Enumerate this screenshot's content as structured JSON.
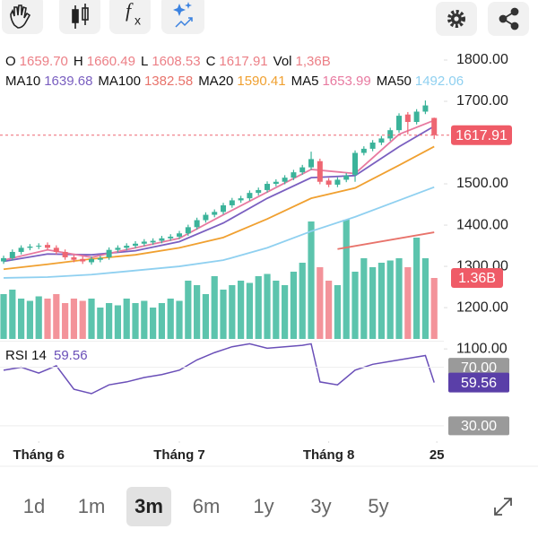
{
  "header": {
    "ohlc": [
      {
        "label": "O",
        "value": "1659.70"
      },
      {
        "label": "H",
        "value": "1660.49"
      },
      {
        "label": "L",
        "value": "1608.53"
      },
      {
        "label": "C",
        "value": "1617.91"
      },
      {
        "label": "Vol",
        "value": "1,36B"
      }
    ],
    "fx_icon": [
      "f",
      "x"
    ]
  },
  "chart_data": {
    "type": "candlestick",
    "up_color": "#3bb39a",
    "down_color": "#ee6672",
    "xlim": [
      -0.41,
      50.1
    ],
    "xticks": [
      {
        "value": 4,
        "label": "Tháng 6"
      },
      {
        "value": 20,
        "label": "Tháng 7"
      },
      {
        "value": 37,
        "label": "Tháng 8"
      },
      {
        "value": 49.3,
        "label": "25"
      }
    ],
    "ylim": [
      1072,
      1826
    ],
    "yticks": [
      {
        "value": 1100,
        "label": "1100.00"
      },
      {
        "value": 1200,
        "label": "1200.00"
      },
      {
        "value": 1300,
        "label": "1300.00"
      },
      {
        "value": 1400,
        "label": "1400.00"
      },
      {
        "value": 1500,
        "label": "1500.00"
      },
      {
        "value": 1700,
        "label": "1700.00"
      },
      {
        "value": 1800,
        "label": "1800.00"
      }
    ],
    "open": [
      1312,
      1320,
      1335,
      1345,
      1348,
      1352,
      1345,
      1335,
      1322,
      1318,
      1310,
      1316,
      1322,
      1340,
      1345,
      1350,
      1355,
      1358,
      1362,
      1368,
      1372,
      1380,
      1395,
      1412,
      1425,
      1432,
      1448,
      1460,
      1465,
      1478,
      1485,
      1500,
      1505,
      1515,
      1528,
      1540,
      1555,
      1508,
      1498,
      1510,
      1522,
      1575,
      1585,
      1600,
      1610,
      1630,
      1668,
      1650,
      1675,
      1659.7
    ],
    "high": [
      1326,
      1341,
      1351,
      1354,
      1356,
      1358,
      1351,
      1341,
      1328,
      1324,
      1324,
      1326,
      1346,
      1351,
      1356,
      1361,
      1366,
      1368,
      1374,
      1378,
      1386,
      1401,
      1418,
      1431,
      1438,
      1454,
      1466,
      1471,
      1484,
      1491,
      1506,
      1511,
      1521,
      1534,
      1546,
      1578,
      1561,
      1514,
      1516,
      1526,
      1581,
      1591,
      1606,
      1616,
      1636,
      1671,
      1674,
      1681,
      1702,
      1660.49
    ],
    "low": [
      1306,
      1314,
      1329,
      1339,
      1342,
      1339,
      1329,
      1316,
      1310,
      1306,
      1304,
      1310,
      1316,
      1334,
      1339,
      1344,
      1349,
      1352,
      1356,
      1362,
      1366,
      1374,
      1389,
      1406,
      1419,
      1426,
      1442,
      1454,
      1459,
      1472,
      1479,
      1494,
      1499,
      1509,
      1522,
      1534,
      1499,
      1492,
      1492,
      1504,
      1505,
      1569,
      1579,
      1594,
      1604,
      1624,
      1620,
      1644,
      1669,
      1608.53
    ],
    "close": [
      1320,
      1335,
      1345,
      1348,
      1350,
      1345,
      1335,
      1322,
      1316,
      1312,
      1318,
      1320,
      1340,
      1345,
      1350,
      1355,
      1360,
      1362,
      1368,
      1372,
      1380,
      1395,
      1412,
      1425,
      1432,
      1448,
      1460,
      1465,
      1478,
      1485,
      1500,
      1505,
      1515,
      1528,
      1540,
      1560,
      1505,
      1498,
      1510,
      1520,
      1575,
      1585,
      1600,
      1610,
      1630,
      1665,
      1650,
      1675,
      1690,
      1617.91
    ],
    "series": [
      {
        "name": "MA10",
        "color": "#7a5fc0",
        "x": [
          0,
          5,
          10,
          15,
          20,
          25,
          30,
          35,
          40,
          45,
          49
        ],
        "values": [
          1312,
          1330,
          1328,
          1338,
          1360,
          1405,
          1465,
          1515,
          1520,
          1590,
          1639.68
        ]
      },
      {
        "name": "MA100",
        "color": "#e8736b",
        "x": [
          38,
          49
        ],
        "values": [
          1342,
          1382.58
        ]
      },
      {
        "name": "MA20",
        "color": "#f0a030",
        "x": [
          0,
          5,
          10,
          15,
          20,
          25,
          30,
          35,
          40,
          45,
          49
        ],
        "values": [
          1293,
          1305,
          1318,
          1328,
          1345,
          1370,
          1415,
          1465,
          1490,
          1545,
          1590.41
        ]
      },
      {
        "name": "MA5",
        "color": "#e87aa0",
        "x": [
          0,
          5,
          10,
          15,
          20,
          25,
          30,
          35,
          40,
          45,
          49
        ],
        "values": [
          1315,
          1340,
          1322,
          1345,
          1368,
          1425,
          1480,
          1535,
          1525,
          1620,
          1653.99
        ]
      },
      {
        "name": "MA50",
        "color": "#8fd0f0",
        "x": [
          0,
          5,
          10,
          15,
          20,
          25,
          30,
          35,
          40,
          45,
          49
        ],
        "values": [
          1272,
          1274,
          1280,
          1290,
          1300,
          1315,
          1345,
          1385,
          1420,
          1460,
          1492.06
        ]
      }
    ],
    "volume": {
      "ylim": [
        0,
        6.46
      ],
      "values": [
        1.0,
        1.1,
        0.9,
        0.85,
        0.95,
        0.9,
        1.0,
        0.8,
        0.9,
        0.85,
        0.9,
        0.7,
        0.8,
        0.75,
        0.9,
        0.8,
        0.85,
        0.7,
        0.8,
        0.9,
        0.85,
        1.3,
        1.2,
        1.0,
        1.4,
        1.1,
        1.2,
        1.3,
        1.25,
        1.4,
        1.45,
        1.3,
        1.2,
        1.5,
        1.7,
        2.62,
        1.6,
        1.3,
        1.2,
        2.66,
        1.5,
        1.8,
        1.6,
        1.7,
        1.75,
        1.8,
        1.6,
        2.26,
        1.8,
        1.36
      ],
      "last_value_label": "1.36B"
    },
    "rsi": {
      "name": "RSI 14",
      "color": "#6a4fb8",
      "ylim": [
        26.9,
        87.8
      ],
      "yticks": [
        {
          "value": 70,
          "label": "70.00"
        },
        {
          "value": 30,
          "label": "30.00"
        }
      ],
      "x": [
        0,
        2,
        4,
        6,
        8,
        10,
        12,
        14,
        16,
        18,
        20,
        22,
        24,
        26,
        28,
        30,
        32,
        34,
        35,
        36,
        38,
        40,
        42,
        44,
        46,
        48,
        49
      ],
      "values": [
        68,
        70,
        66,
        71,
        55,
        52,
        58,
        60,
        63,
        65,
        68,
        75,
        80,
        84,
        86,
        83,
        84,
        85,
        86,
        60,
        58,
        68,
        72,
        74,
        76,
        78,
        59.56
      ]
    }
  },
  "timeframes": {
    "items": [
      "1d",
      "1m",
      "3m",
      "6m",
      "1y",
      "3y",
      "5y"
    ],
    "selected": 2
  }
}
